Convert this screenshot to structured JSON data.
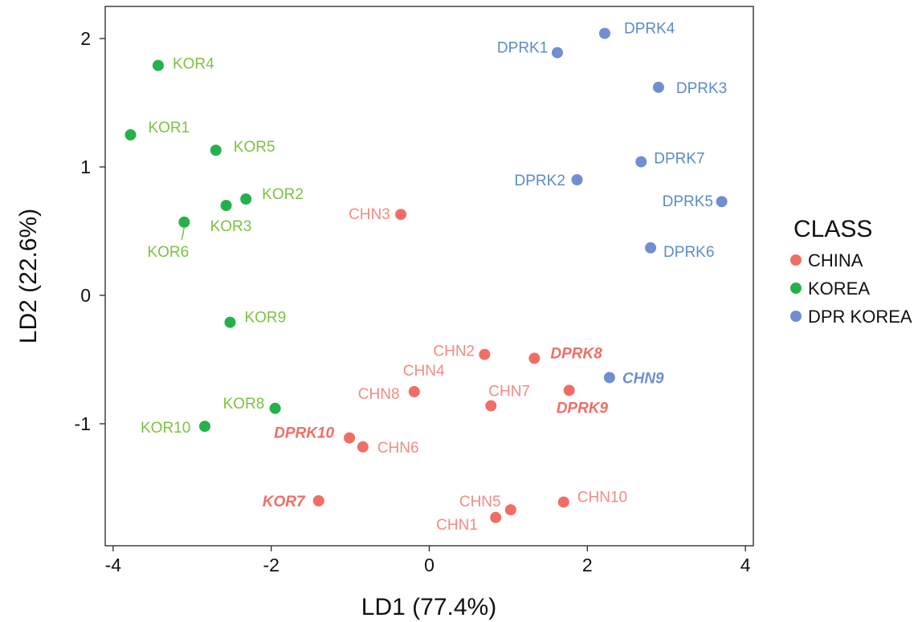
{
  "chart_data": {
    "type": "scatter",
    "xlabel": "LD1 (77.4%)",
    "ylabel": "LD2 (22.6%)",
    "xlim": [
      -4.1,
      4.1
    ],
    "ylim": [
      -1.95,
      2.25
    ],
    "x_ticks": [
      -4,
      -2,
      0,
      2,
      4
    ],
    "y_ticks": [
      -1,
      0,
      1,
      2
    ],
    "x_tick_labels": [
      "-4",
      "-2",
      "0",
      "2",
      "4"
    ],
    "y_tick_labels": [
      "-1",
      "0",
      "1",
      "2"
    ],
    "grid": false,
    "legend": {
      "title": "CLASS",
      "placement": "right",
      "entries": [
        {
          "label": "CHINA",
          "color": "#f06e66"
        },
        {
          "label": "KOREA",
          "color": "#25b14a"
        },
        {
          "label": "DPR KOREA",
          "color": "#6f8fd1"
        }
      ]
    },
    "label_colors": {
      "CHINA": "#f28b84",
      "KOREA": "#7cc242",
      "DPR KOREA": "#5b8bc6"
    },
    "series": [
      {
        "name": "CHINA",
        "color": "#f06e66",
        "points": [
          {
            "label": "CHN1",
            "x": 0.84,
            "y": -1.73
          },
          {
            "label": "CHN2",
            "x": 0.7,
            "y": -0.46
          },
          {
            "label": "CHN3",
            "x": -0.36,
            "y": 0.63
          },
          {
            "label": "CHN4",
            "x": null,
            "y": null
          },
          {
            "label": "CHN5",
            "x": 1.03,
            "y": -1.67
          },
          {
            "label": "CHN6",
            "x": -0.84,
            "y": -1.18
          },
          {
            "label": "CHN7",
            "x": 0.78,
            "y": -0.86
          },
          {
            "label": "CHN8",
            "x": -0.19,
            "y": -0.75
          },
          {
            "label": "CHN10",
            "x": 1.7,
            "y": -1.61
          },
          {
            "label": "DPRK8",
            "x": 1.33,
            "y": -0.49,
            "misclassified": true
          },
          {
            "label": "DPRK9",
            "x": 1.77,
            "y": -0.74,
            "misclassified": true
          },
          {
            "label": "DPRK10",
            "x": -1.01,
            "y": -1.11,
            "misclassified": true
          },
          {
            "label": "KOR7",
            "x": -1.4,
            "y": -1.6,
            "misclassified": true
          }
        ]
      },
      {
        "name": "KOREA",
        "color": "#25b14a",
        "points": [
          {
            "label": "KOR1",
            "x": -3.78,
            "y": 1.25
          },
          {
            "label": "KOR2",
            "x": -2.32,
            "y": 0.75
          },
          {
            "label": "KOR3",
            "x": -2.57,
            "y": 0.7
          },
          {
            "label": "KOR4",
            "x": -3.43,
            "y": 1.79
          },
          {
            "label": "KOR5",
            "x": -2.7,
            "y": 1.13
          },
          {
            "label": "KOR6",
            "x": -3.1,
            "y": 0.57
          },
          {
            "label": "KOR8",
            "x": -1.95,
            "y": -0.88
          },
          {
            "label": "KOR9",
            "x": -2.52,
            "y": -0.21
          },
          {
            "label": "KOR10",
            "x": -2.84,
            "y": -1.02
          }
        ]
      },
      {
        "name": "DPR KOREA",
        "color": "#6f8fd1",
        "points": [
          {
            "label": "DPRK1",
            "x": 1.62,
            "y": 1.89
          },
          {
            "label": "DPRK2",
            "x": 1.87,
            "y": 0.9
          },
          {
            "label": "DPRK3",
            "x": 2.9,
            "y": 1.62
          },
          {
            "label": "DPRK4",
            "x": 2.22,
            "y": 2.04
          },
          {
            "label": "DPRK5",
            "x": 3.7,
            "y": 0.73
          },
          {
            "label": "DPRK6",
            "x": 2.8,
            "y": 0.37
          },
          {
            "label": "DPRK7",
            "x": 2.68,
            "y": 1.04
          },
          {
            "label": "CHN9",
            "x": 2.28,
            "y": -0.64,
            "misclassified": true
          }
        ]
      }
    ]
  }
}
